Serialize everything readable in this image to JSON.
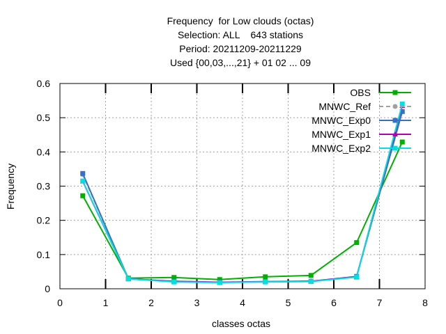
{
  "chart_data": {
    "type": "line",
    "title_lines": [
      "Frequency  for Low clouds (octas)",
      "Selection: ALL    643 stations",
      "Period: 20211209-20211229",
      "Used {00,03,...,21} + 01 02 ... 09"
    ],
    "xlabel": "classes octas",
    "ylabel": "Frequency",
    "xlim": [
      0,
      8
    ],
    "ylim": [
      0,
      0.6
    ],
    "x_ticks": [
      "0",
      "1",
      "2",
      "3",
      "4",
      "5",
      "6",
      "7",
      "8"
    ],
    "y_ticks": [
      "0",
      "0.1",
      "0.2",
      "0.3",
      "0.4",
      "0.5",
      "0.6"
    ],
    "grid": true,
    "legend_position": "top-right",
    "x": [
      0.5,
      1.5,
      2.5,
      3.5,
      4.5,
      5.5,
      6.5,
      7.5
    ],
    "series": [
      {
        "name": "OBS",
        "color": "#00b000",
        "marker": "square",
        "dashed": false,
        "values": [
          0.272,
          0.031,
          0.033,
          0.027,
          0.035,
          0.039,
          0.135,
          0.429
        ]
      },
      {
        "name": "MNWC_Ref",
        "color": "#a0a0a0",
        "marker": "circle",
        "dashed": true,
        "values": [
          0.334,
          0.029,
          0.022,
          0.019,
          0.021,
          0.022,
          0.036,
          0.518
        ]
      },
      {
        "name": "MNWC_Exp0",
        "color": "#3a6fc4",
        "marker": "square",
        "dashed": false,
        "values": [
          0.337,
          0.029,
          0.022,
          0.019,
          0.021,
          0.022,
          0.036,
          0.518
        ]
      },
      {
        "name": "MNWC_Exp1",
        "color": "#b000b0",
        "marker": "triangle",
        "dashed": false,
        "values": [
          0.314,
          0.029,
          0.021,
          0.019,
          0.02,
          0.022,
          0.035,
          0.535
        ]
      },
      {
        "name": "MNWC_Exp2",
        "color": "#00e0e0",
        "marker": "square",
        "dashed": false,
        "values": [
          0.315,
          0.029,
          0.02,
          0.018,
          0.02,
          0.021,
          0.034,
          0.54
        ]
      }
    ]
  }
}
